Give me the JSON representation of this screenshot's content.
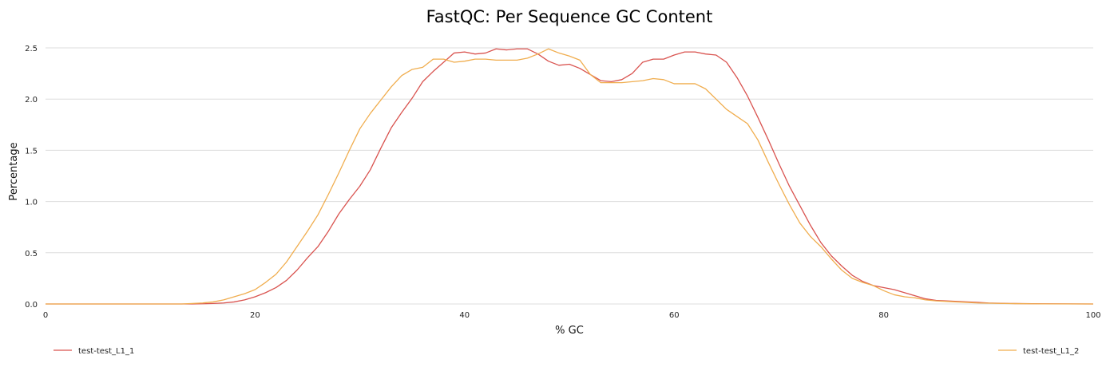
{
  "chart_data": {
    "type": "line",
    "title": "FastQC: Per Sequence GC Content",
    "xlabel": "% GC",
    "ylabel": "Percentage",
    "xlim": [
      0,
      100
    ],
    "ylim": [
      0,
      2.5
    ],
    "x_ticks": [
      "0",
      "20",
      "40",
      "60",
      "80",
      "100"
    ],
    "y_ticks": [
      "0.0",
      "0.5",
      "1.0",
      "1.5",
      "2.0",
      "2.5"
    ],
    "grid": "horizontal",
    "legend_placement": "bottom",
    "series": [
      {
        "name": "test-test_L1_1",
        "color": "#d9534f",
        "points": [
          [
            0,
            0
          ],
          [
            14,
            0
          ],
          [
            15,
            0.002
          ],
          [
            16,
            0.005
          ],
          [
            17,
            0.01
          ],
          [
            18,
            0.02
          ],
          [
            19,
            0.04
          ],
          [
            20,
            0.07
          ],
          [
            21,
            0.11
          ],
          [
            22,
            0.16
          ],
          [
            23,
            0.23
          ],
          [
            24,
            0.33
          ],
          [
            25,
            0.45
          ],
          [
            26,
            0.56
          ],
          [
            27,
            0.71
          ],
          [
            28,
            0.88
          ],
          [
            29,
            1.02
          ],
          [
            30,
            1.15
          ],
          [
            31,
            1.31
          ],
          [
            32,
            1.52
          ],
          [
            33,
            1.72
          ],
          [
            34,
            1.87
          ],
          [
            35,
            2.01
          ],
          [
            36,
            2.17
          ],
          [
            37,
            2.27
          ],
          [
            38,
            2.36
          ],
          [
            39,
            2.45
          ],
          [
            40,
            2.46
          ],
          [
            41,
            2.44
          ],
          [
            42,
            2.45
          ],
          [
            43,
            2.49
          ],
          [
            44,
            2.48
          ],
          [
            45,
            2.49
          ],
          [
            46,
            2.49
          ],
          [
            47,
            2.44
          ],
          [
            48,
            2.37
          ],
          [
            49,
            2.33
          ],
          [
            50,
            2.34
          ],
          [
            51,
            2.3
          ],
          [
            52,
            2.24
          ],
          [
            53,
            2.18
          ],
          [
            54,
            2.17
          ],
          [
            55,
            2.19
          ],
          [
            56,
            2.25
          ],
          [
            57,
            2.36
          ],
          [
            58,
            2.39
          ],
          [
            59,
            2.39
          ],
          [
            60,
            2.43
          ],
          [
            61,
            2.46
          ],
          [
            62,
            2.46
          ],
          [
            63,
            2.44
          ],
          [
            64,
            2.43
          ],
          [
            65,
            2.36
          ],
          [
            66,
            2.21
          ],
          [
            67,
            2.03
          ],
          [
            68,
            1.82
          ],
          [
            69,
            1.6
          ],
          [
            70,
            1.37
          ],
          [
            71,
            1.15
          ],
          [
            72,
            0.96
          ],
          [
            73,
            0.77
          ],
          [
            74,
            0.6
          ],
          [
            75,
            0.47
          ],
          [
            76,
            0.37
          ],
          [
            77,
            0.28
          ],
          [
            78,
            0.22
          ],
          [
            79,
            0.18
          ],
          [
            80,
            0.16
          ],
          [
            81,
            0.14
          ],
          [
            82,
            0.11
          ],
          [
            83,
            0.08
          ],
          [
            84,
            0.05
          ],
          [
            85,
            0.035
          ],
          [
            86,
            0.03
          ],
          [
            87,
            0.025
          ],
          [
            88,
            0.02
          ],
          [
            89,
            0.015
          ],
          [
            90,
            0.01
          ],
          [
            92,
            0.005
          ],
          [
            95,
            0.002
          ],
          [
            100,
            0
          ]
        ]
      },
      {
        "name": "test-test_L1_2",
        "color": "#f0ad4e",
        "points": [
          [
            0,
            0
          ],
          [
            13,
            0
          ],
          [
            14,
            0.005
          ],
          [
            15,
            0.01
          ],
          [
            16,
            0.02
          ],
          [
            17,
            0.04
          ],
          [
            18,
            0.07
          ],
          [
            19,
            0.1
          ],
          [
            20,
            0.14
          ],
          [
            21,
            0.21
          ],
          [
            22,
            0.29
          ],
          [
            23,
            0.41
          ],
          [
            24,
            0.56
          ],
          [
            25,
            0.71
          ],
          [
            26,
            0.87
          ],
          [
            27,
            1.07
          ],
          [
            28,
            1.28
          ],
          [
            29,
            1.5
          ],
          [
            30,
            1.71
          ],
          [
            31,
            1.86
          ],
          [
            32,
            1.99
          ],
          [
            33,
            2.12
          ],
          [
            34,
            2.23
          ],
          [
            35,
            2.29
          ],
          [
            36,
            2.31
          ],
          [
            37,
            2.39
          ],
          [
            38,
            2.39
          ],
          [
            39,
            2.36
          ],
          [
            40,
            2.37
          ],
          [
            41,
            2.39
          ],
          [
            42,
            2.39
          ],
          [
            43,
            2.38
          ],
          [
            44,
            2.38
          ],
          [
            45,
            2.38
          ],
          [
            46,
            2.4
          ],
          [
            47,
            2.44
          ],
          [
            48,
            2.49
          ],
          [
            49,
            2.45
          ],
          [
            50,
            2.42
          ],
          [
            51,
            2.38
          ],
          [
            52,
            2.24
          ],
          [
            53,
            2.16
          ],
          [
            54,
            2.16
          ],
          [
            55,
            2.16
          ],
          [
            56,
            2.17
          ],
          [
            57,
            2.18
          ],
          [
            58,
            2.2
          ],
          [
            59,
            2.19
          ],
          [
            60,
            2.15
          ],
          [
            61,
            2.15
          ],
          [
            62,
            2.15
          ],
          [
            63,
            2.1
          ],
          [
            64,
            2.0
          ],
          [
            65,
            1.9
          ],
          [
            66,
            1.83
          ],
          [
            67,
            1.76
          ],
          [
            68,
            1.6
          ],
          [
            69,
            1.38
          ],
          [
            70,
            1.17
          ],
          [
            71,
            0.97
          ],
          [
            72,
            0.79
          ],
          [
            73,
            0.66
          ],
          [
            74,
            0.56
          ],
          [
            75,
            0.44
          ],
          [
            76,
            0.33
          ],
          [
            77,
            0.25
          ],
          [
            78,
            0.21
          ],
          [
            79,
            0.18
          ],
          [
            80,
            0.13
          ],
          [
            81,
            0.09
          ],
          [
            82,
            0.07
          ],
          [
            83,
            0.06
          ],
          [
            84,
            0.04
          ],
          [
            85,
            0.03
          ],
          [
            86,
            0.025
          ],
          [
            87,
            0.02
          ],
          [
            88,
            0.015
          ],
          [
            89,
            0.01
          ],
          [
            90,
            0.008
          ],
          [
            92,
            0.004
          ],
          [
            95,
            0.001
          ],
          [
            100,
            0
          ]
        ]
      }
    ]
  }
}
